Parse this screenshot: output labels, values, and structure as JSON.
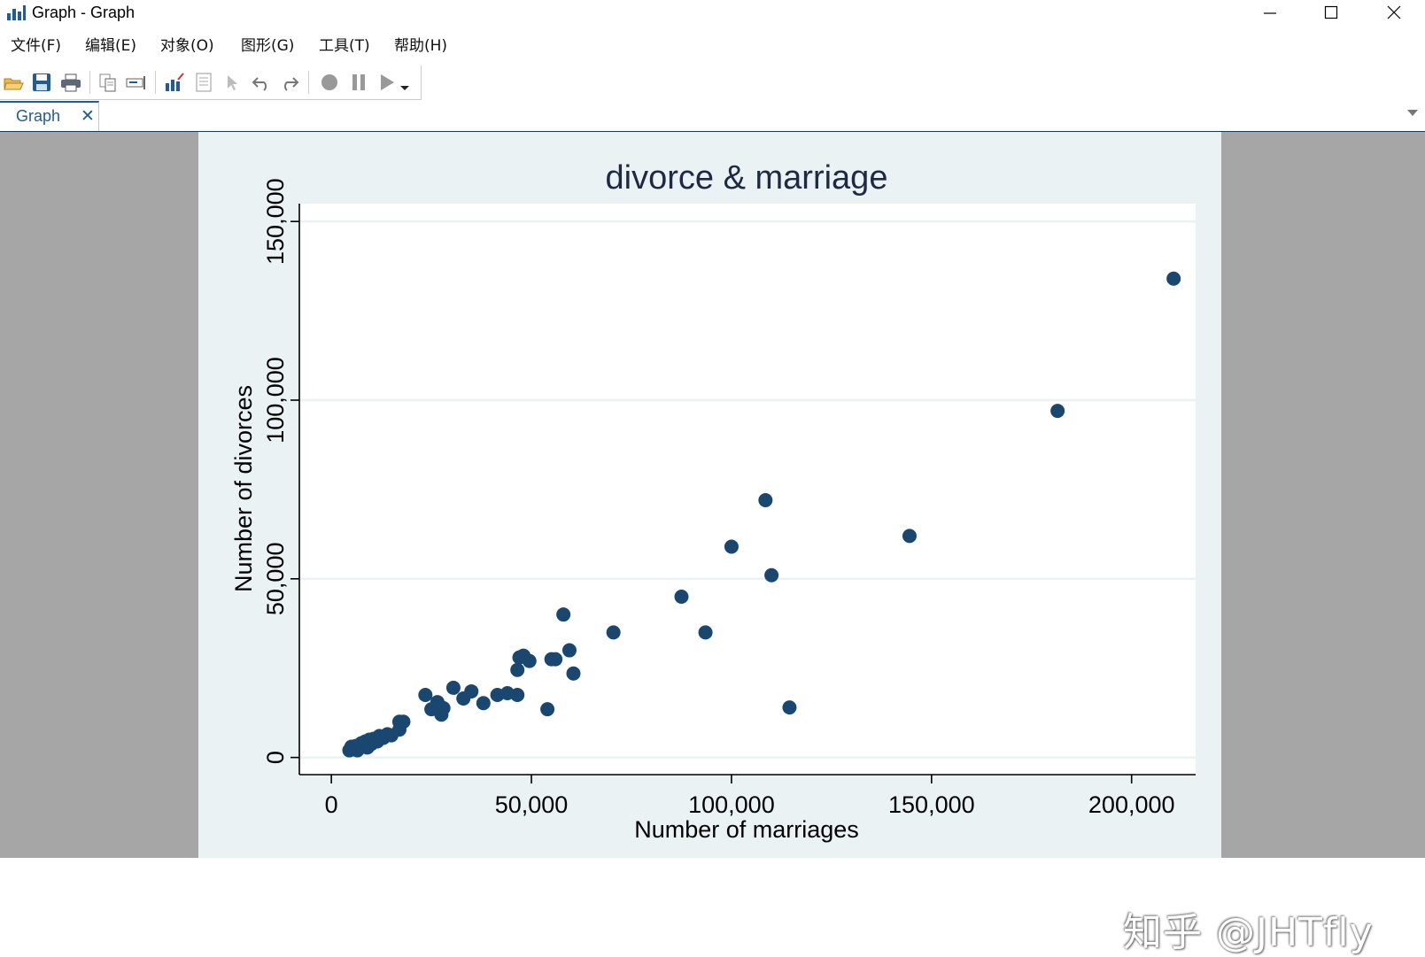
{
  "window": {
    "title": "Graph - Graph"
  },
  "menu": [
    "文件(F)",
    "编辑(E)",
    "对象(O)",
    "图形(G)",
    "工具(T)",
    "帮助(H)"
  ],
  "toolbar": {
    "icons": [
      "open-icon",
      "save-icon",
      "print-icon",
      "copy-icon",
      "rename-icon",
      "graph-editor-icon",
      "graph-list-icon",
      "pointer-icon",
      "undo-icon",
      "redo-icon",
      "record-icon",
      "pause-icon",
      "play-icon",
      "dropdown-icon"
    ]
  },
  "tab": {
    "label": "Graph",
    "close": "✕"
  },
  "watermark": "知乎 @JHTfly",
  "colors": {
    "marker": "#1a476f",
    "plot_bg": "#ffffff",
    "graph_bg": "#eaf2f3",
    "gridline": "#eaf2f3",
    "text": "#1e2a44",
    "workspace": "#a6a6a6"
  },
  "chart_data": {
    "type": "scatter",
    "title": "divorce & marriage",
    "xlabel": "Number of marriages",
    "ylabel": "Number of divorces",
    "xlim": [
      -8000,
      216000
    ],
    "ylim": [
      -4800,
      155000
    ],
    "xticks": [
      0,
      50000,
      100000,
      150000,
      200000
    ],
    "xtick_labels": [
      "0",
      "50,000",
      "100,000",
      "150,000",
      "200,000"
    ],
    "yticks": [
      0,
      50000,
      100000,
      150000
    ],
    "ytick_labels": [
      "0",
      "50,000",
      "100,000",
      "150,000"
    ],
    "grid": "horizontal",
    "points": [
      {
        "x": 4500,
        "y": 2000
      },
      {
        "x": 5000,
        "y": 3000
      },
      {
        "x": 5500,
        "y": 2500
      },
      {
        "x": 6000,
        "y": 3200
      },
      {
        "x": 6500,
        "y": 2000
      },
      {
        "x": 7000,
        "y": 3500
      },
      {
        "x": 7500,
        "y": 4000
      },
      {
        "x": 8000,
        "y": 3000
      },
      {
        "x": 8500,
        "y": 4500
      },
      {
        "x": 9000,
        "y": 2800
      },
      {
        "x": 9500,
        "y": 5000
      },
      {
        "x": 10000,
        "y": 3800
      },
      {
        "x": 10500,
        "y": 5200
      },
      {
        "x": 11500,
        "y": 4500
      },
      {
        "x": 12000,
        "y": 6000
      },
      {
        "x": 13000,
        "y": 5500
      },
      {
        "x": 14000,
        "y": 6500
      },
      {
        "x": 15000,
        "y": 6200
      },
      {
        "x": 17000,
        "y": 7800
      },
      {
        "x": 17000,
        "y": 10000
      },
      {
        "x": 18000,
        "y": 10000
      },
      {
        "x": 23500,
        "y": 17500
      },
      {
        "x": 25000,
        "y": 13500
      },
      {
        "x": 26500,
        "y": 15500
      },
      {
        "x": 27500,
        "y": 12000
      },
      {
        "x": 28000,
        "y": 13800
      },
      {
        "x": 30500,
        "y": 19500
      },
      {
        "x": 33000,
        "y": 16500
      },
      {
        "x": 35000,
        "y": 18500
      },
      {
        "x": 38000,
        "y": 15200
      },
      {
        "x": 41500,
        "y": 17500
      },
      {
        "x": 44000,
        "y": 18000
      },
      {
        "x": 46500,
        "y": 17500
      },
      {
        "x": 46500,
        "y": 24500
      },
      {
        "x": 47000,
        "y": 28000
      },
      {
        "x": 48000,
        "y": 28500
      },
      {
        "x": 49500,
        "y": 27000
      },
      {
        "x": 54000,
        "y": 13500
      },
      {
        "x": 55000,
        "y": 27500
      },
      {
        "x": 56000,
        "y": 27500
      },
      {
        "x": 58000,
        "y": 40000
      },
      {
        "x": 59500,
        "y": 30000
      },
      {
        "x": 60500,
        "y": 23500
      },
      {
        "x": 70500,
        "y": 35000
      },
      {
        "x": 87500,
        "y": 45000
      },
      {
        "x": 93500,
        "y": 35000
      },
      {
        "x": 100000,
        "y": 59000
      },
      {
        "x": 108500,
        "y": 72000
      },
      {
        "x": 110000,
        "y": 51000
      },
      {
        "x": 114500,
        "y": 14000
      },
      {
        "x": 144500,
        "y": 62000
      },
      {
        "x": 181500,
        "y": 97000
      },
      {
        "x": 210500,
        "y": 134000
      }
    ]
  }
}
